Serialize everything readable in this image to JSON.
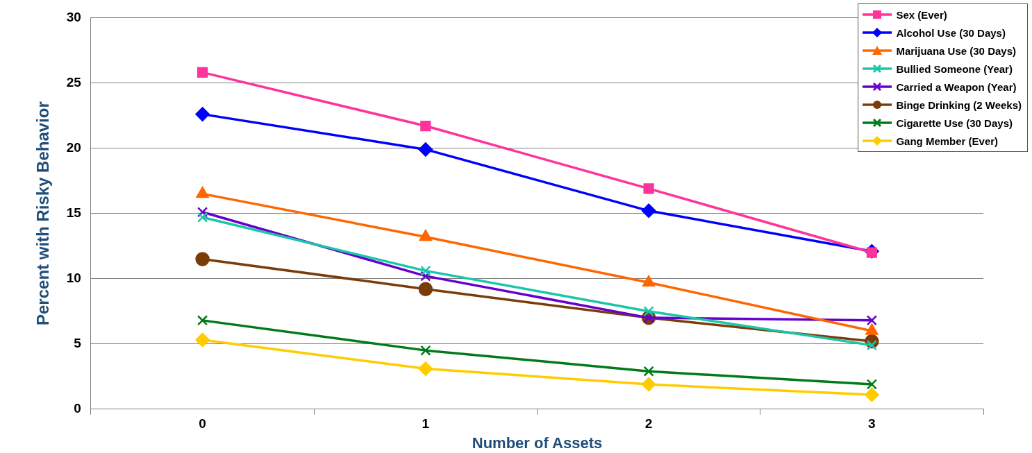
{
  "chart_data": {
    "type": "line",
    "xlabel": "Number of Assets",
    "ylabel": "Percent with Risky Behavior",
    "categories": [
      "0",
      "1",
      "2",
      "3"
    ],
    "ylim": [
      0,
      30
    ],
    "yticks": [
      0,
      5,
      10,
      15,
      20,
      25,
      30
    ],
    "grid": "y",
    "legend": "top right",
    "line_style": "solid",
    "series": [
      {
        "name": "Sex (Ever)",
        "color": "#ff3399",
        "marker": "square",
        "values": [
          25.8,
          21.7,
          16.9,
          12.0
        ]
      },
      {
        "name": "Alcohol Use (30 Days)",
        "color": "#0000ff",
        "marker": "diamond",
        "values": [
          22.6,
          19.9,
          15.2,
          12.1
        ]
      },
      {
        "name": "Marijuana Use (30 Days)",
        "color": "#ff6600",
        "marker": "triangle",
        "values": [
          16.5,
          13.2,
          9.7,
          6.0
        ]
      },
      {
        "name": "Bullied Someone (Year)",
        "color": "#1ac6a8",
        "marker": "cross",
        "values": [
          14.7,
          10.6,
          7.5,
          4.9
        ]
      },
      {
        "name": "Carried a Weapon (Year)",
        "color": "#6600cc",
        "marker": "cross",
        "values": [
          15.1,
          10.2,
          7.0,
          6.8
        ]
      },
      {
        "name": "Binge Drinking (2 Weeks)",
        "color": "#7a3d0a",
        "marker": "circle",
        "values": [
          11.5,
          9.2,
          7.0,
          5.2
        ]
      },
      {
        "name": "Cigarette Use (30 Days)",
        "color": "#007a1a",
        "marker": "cross",
        "values": [
          6.8,
          4.5,
          2.9,
          1.9
        ]
      },
      {
        "name": "Gang Member (Ever)",
        "color": "#ffcc00",
        "marker": "diamond",
        "values": [
          5.3,
          3.1,
          1.9,
          1.1
        ]
      }
    ]
  }
}
